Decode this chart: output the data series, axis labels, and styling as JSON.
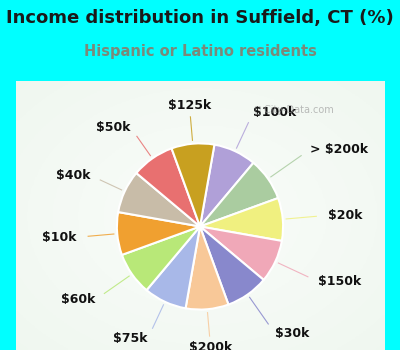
{
  "title": "Income distribution in Suffield, CT (%)",
  "subtitle": "Hispanic or Latino residents",
  "bg_color": "#00FFFF",
  "chart_bg": "#e8f5ee",
  "title_color": "#1a1a1a",
  "subtitle_color": "#7a8a7a",
  "watermark": "City-Data.com",
  "labels": [
    "$100k",
    "> $200k",
    "$20k",
    "$150k",
    "$30k",
    "$200k",
    "$75k",
    "$60k",
    "$10k",
    "$40k",
    "$50k",
    "$125k"
  ],
  "colors": [
    "#b0a0d8",
    "#aacca0",
    "#f0f080",
    "#f0a8b8",
    "#8888cc",
    "#f8c898",
    "#a8b8e8",
    "#b8e878",
    "#f0a030",
    "#c8bca8",
    "#e87070",
    "#c8a020"
  ],
  "label_angles": [
    65,
    35,
    5,
    -25,
    -55,
    -85,
    -115,
    -145,
    -175,
    155,
    125,
    95
  ],
  "label_r": [
    0.56,
    0.6,
    0.57,
    0.58,
    0.58,
    0.54,
    0.55,
    0.57,
    0.55,
    0.54,
    0.54,
    0.54
  ],
  "start_angle": 80,
  "title_fontsize": 13,
  "subtitle_fontsize": 10.5,
  "label_fontsize": 9
}
